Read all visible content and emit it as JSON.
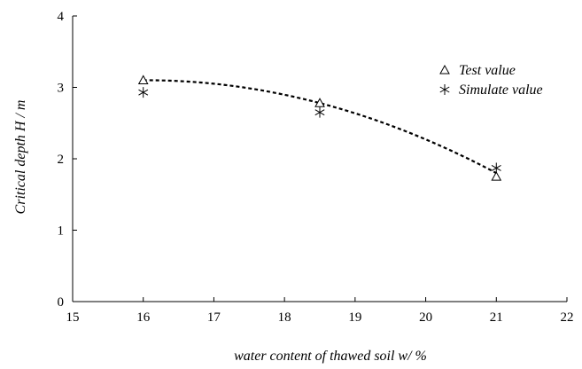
{
  "chart_data": {
    "type": "scatter",
    "title": "",
    "xlabel": "water content of thawed soil w/ %",
    "ylabel": "Critical depth H / m",
    "xlim": [
      15,
      22
    ],
    "ylim": [
      0,
      4
    ],
    "xticks": [
      15,
      16,
      17,
      18,
      19,
      20,
      21,
      22
    ],
    "yticks": [
      0,
      1,
      2,
      3,
      4
    ],
    "grid": false,
    "legend_position": "top-right",
    "series": [
      {
        "name": "Test value",
        "marker": "triangle",
        "x": [
          16,
          18.5,
          21
        ],
        "y": [
          3.1,
          2.78,
          1.75
        ]
      },
      {
        "name": "Simulate value",
        "marker": "asterisk",
        "x": [
          16,
          18.5,
          21
        ],
        "y": [
          2.93,
          2.65,
          1.87
        ]
      }
    ],
    "trendline": {
      "style": "dashed",
      "fit": "quadratic",
      "x": [
        16,
        18.5,
        21
      ],
      "y": [
        3.1,
        2.78,
        1.8
      ]
    }
  }
}
